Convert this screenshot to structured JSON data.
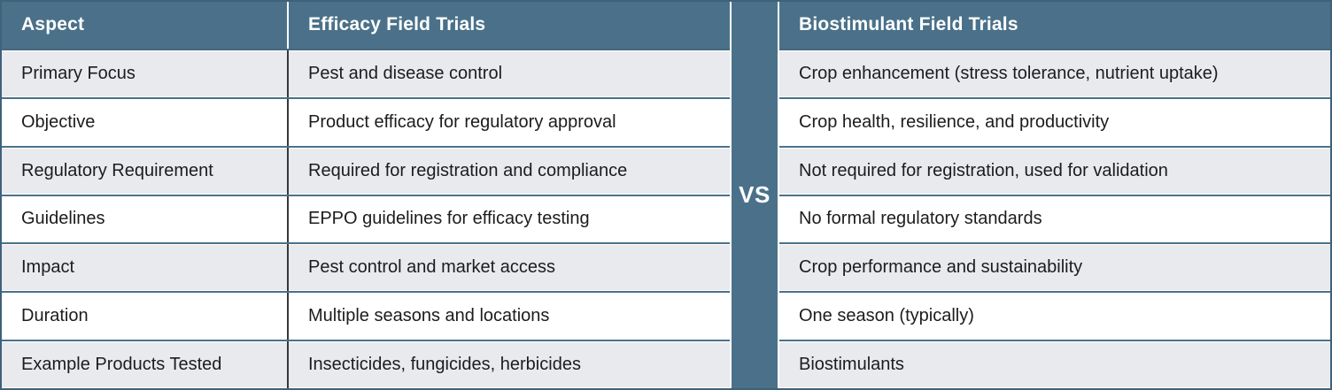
{
  "chart_data": {
    "type": "table",
    "columns": [
      "Aspect",
      "Efficacy Field Trials",
      "Biostimulant Field Trials"
    ],
    "divider_label": "VS",
    "rows": [
      [
        "Primary Focus",
        "Pest and disease control",
        "Crop enhancement (stress tolerance, nutrient uptake)"
      ],
      [
        "Objective",
        "Product efficacy for regulatory approval",
        "Crop health, resilience, and productivity"
      ],
      [
        "Regulatory Requirement",
        "Required for registration and compliance",
        "Not required for registration, used for validation"
      ],
      [
        "Guidelines",
        "EPPO guidelines for efficacy testing",
        "No formal regulatory standards"
      ],
      [
        "Impact",
        "Pest control and market access",
        "Crop performance and sustainability"
      ],
      [
        "Duration",
        "Multiple seasons and locations",
        "One season (typically)"
      ],
      [
        "Example Products Tested",
        "Insecticides, fungicides, herbicides",
        "Biostimulants"
      ]
    ],
    "layout": {
      "striped_rows": true,
      "stripe_order": "gray-first"
    }
  },
  "colors": {
    "header_bg": "#4A7189",
    "header_text": "#FFFFFF",
    "row_stripe_gray": "#E8EAEE",
    "row_stripe_white": "#FFFFFF",
    "row_border_blue": "#4A7189",
    "outer_border": "#3F617A",
    "column_divider_dark": "#383838",
    "body_text": "#1C1C1C",
    "vs_band_bg": "#4A7189",
    "vs_text": "#FFFFFF"
  }
}
